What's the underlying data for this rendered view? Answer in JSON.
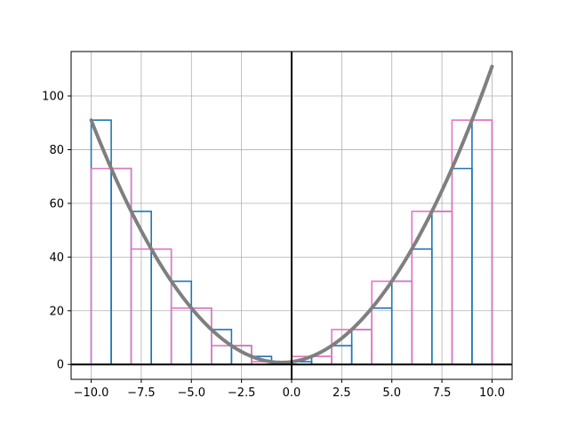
{
  "chart_data": {
    "type": "bar",
    "xlim": [
      -11,
      11
    ],
    "ylim": [
      -5.55,
      116.55
    ],
    "x_ticks": [
      -10,
      -7.5,
      -5,
      -2.5,
      0,
      2.5,
      5,
      7.5,
      10
    ],
    "x_tick_labels": [
      "−10.0",
      "−7.5",
      "−5.0",
      "−2.5",
      "0.0",
      "2.5",
      "5.0",
      "7.5",
      "10.0"
    ],
    "y_ticks": [
      0,
      20,
      40,
      60,
      80,
      100
    ],
    "y_tick_labels": [
      "0",
      "20",
      "40",
      "60",
      "80",
      "100"
    ],
    "grid": true,
    "axis_lines": {
      "x0": true,
      "y0": true
    },
    "series": [
      {
        "kind": "steps",
        "color": "#1f77b4",
        "step_width": 1,
        "x": [
          -10,
          -9,
          -8,
          -7,
          -6,
          -5,
          -4,
          -3,
          -2,
          -1,
          0,
          1,
          2,
          3,
          4,
          5,
          6,
          7,
          8,
          9
        ],
        "values": [
          91,
          73,
          57,
          43,
          31,
          21,
          13,
          7,
          3,
          1,
          1,
          3,
          7,
          13,
          21,
          31,
          43,
          57,
          73,
          91
        ]
      },
      {
        "kind": "steps",
        "color": "#e377c2",
        "step_width": 2,
        "x": [
          -10,
          -8,
          -6,
          -4,
          -2,
          0,
          2,
          4,
          6,
          8
        ],
        "values": [
          73,
          43,
          21,
          7,
          1,
          3,
          13,
          31,
          57,
          91
        ]
      },
      {
        "kind": "curve",
        "color": "#7f7f7f",
        "x": [
          -10,
          -9,
          -8,
          -7,
          -6,
          -5,
          -4,
          -3,
          -2,
          -1,
          0,
          1,
          2,
          3,
          4,
          5,
          6,
          7,
          8,
          9,
          10
        ],
        "values": [
          91,
          73,
          57,
          43,
          31,
          21,
          13,
          7,
          3,
          1,
          1,
          3,
          7,
          13,
          21,
          31,
          43,
          57,
          73,
          91,
          111
        ]
      }
    ]
  }
}
